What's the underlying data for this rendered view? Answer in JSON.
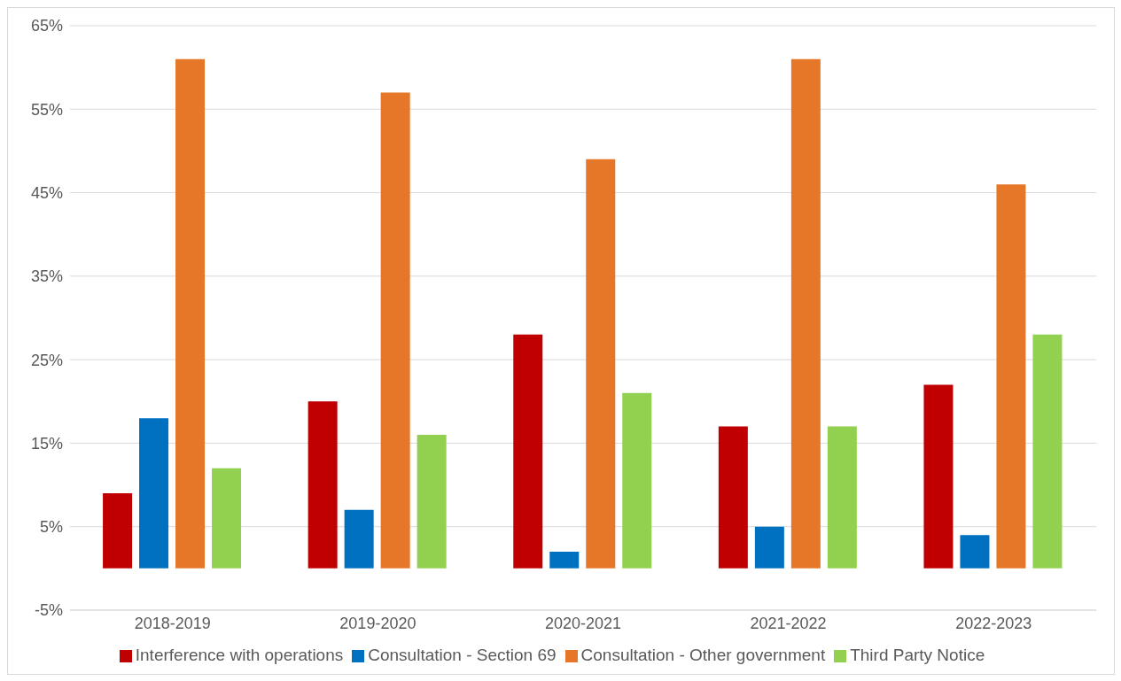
{
  "chart_data": {
    "type": "bar",
    "categories": [
      "2018-2019",
      "2019-2020",
      "2020-2021",
      "2021-2022",
      "2022-2023"
    ],
    "series": [
      {
        "name": "Interference with operations",
        "color": "#c00000",
        "values": [
          9,
          20,
          28,
          17,
          22
        ]
      },
      {
        "name": "Consultation - Section 69",
        "color": "#0070c0",
        "values": [
          18,
          7,
          2,
          5,
          4
        ]
      },
      {
        "name": "Consultation - Other government",
        "color": "#e67628",
        "values": [
          61,
          57,
          49,
          61,
          46
        ]
      },
      {
        "name": "Third Party Notice",
        "color": "#92d050",
        "values": [
          12,
          16,
          21,
          17,
          28
        ]
      }
    ],
    "ylim": [
      -5,
      65
    ],
    "yticks": [
      {
        "value": -5,
        "label": "-5%"
      },
      {
        "value": 5,
        "label": "5%"
      },
      {
        "value": 15,
        "label": "15%"
      },
      {
        "value": 25,
        "label": "25%"
      },
      {
        "value": 35,
        "label": "35%"
      },
      {
        "value": 45,
        "label": "45%"
      },
      {
        "value": 55,
        "label": "55%"
      },
      {
        "value": 65,
        "label": "65%"
      }
    ],
    "grid": "y",
    "legend": "bottom"
  }
}
